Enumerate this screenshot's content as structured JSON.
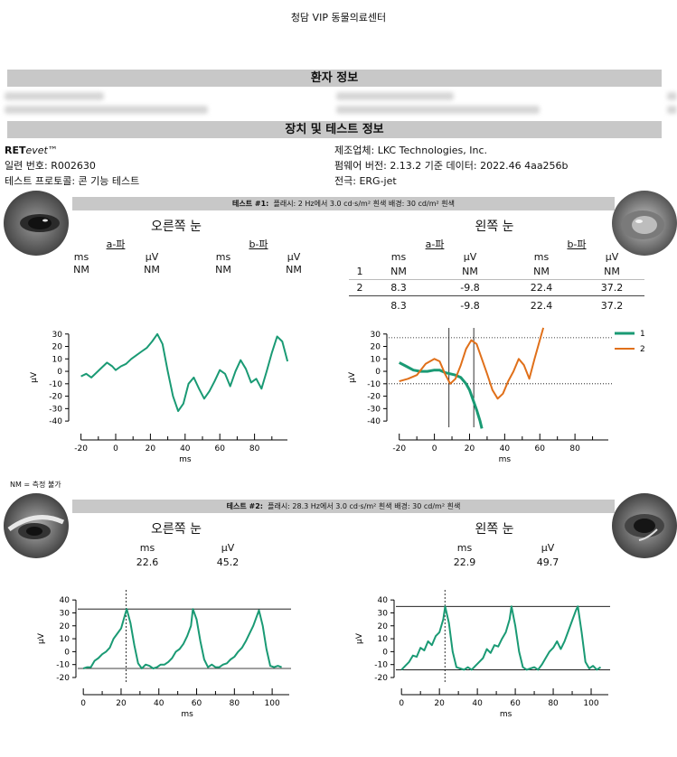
{
  "header": {
    "clinic": "청담 VIP 동물의료센터"
  },
  "sections": {
    "patient": "환자 정보",
    "device": "장치 및 테스트 정보"
  },
  "device": {
    "brand_bold": "RET",
    "brand_italic": "evet",
    "brand_tm": "™",
    "serial_label": "일련 번호:",
    "serial": "R002630",
    "protocol_label": "테스트 프로토콜:",
    "protocol": "콘 기능 테스트",
    "maker_label": "제조업체:",
    "maker": "LKC Technologies, Inc.",
    "firmware_label": "펌웨어 버전:",
    "firmware": "2.13.2 기준 데이터: 2022.46 4aa256b",
    "electrode_label": "전극:",
    "electrode": "ERG-jet"
  },
  "test1": {
    "bar_label": "테스트 #1:",
    "bar_text": "플래시: 2 Hz에서 3.0 cd·s/m² 흰색   배경: 30 cd/m² 흰색",
    "right_eye": "오른쪽 눈",
    "left_eye": "왼쪽 눈",
    "a_wave": "a-파",
    "b_wave": "b-파",
    "unit_ms": "ms",
    "unit_uv": "µV",
    "right_row": [
      "NM",
      "NM",
      "NM",
      "NM"
    ],
    "left_rows": [
      {
        "idx": "1",
        "vals": [
          "NM",
          "NM",
          "NM",
          "NM"
        ]
      },
      {
        "idx": "2",
        "vals": [
          "8.3",
          "-9.8",
          "22.4",
          "37.2"
        ]
      }
    ],
    "left_summary": [
      "8.3",
      "-9.8",
      "22.4",
      "37.2"
    ],
    "nm_note": "NM = 측정 불가"
  },
  "test2": {
    "bar_label": "테스트 #2:",
    "bar_text": "플래시: 28.3 Hz에서 3.0 cd·s/m² 흰색   배경: 30 cd/m² 흰색",
    "right_eye": "오른쪽 눈",
    "left_eye": "왼쪽 눈",
    "unit_ms": "ms",
    "unit_uv": "µV",
    "right_vals": [
      "22.6",
      "45.2"
    ],
    "left_vals": [
      "22.9",
      "49.7"
    ]
  },
  "chart_data": [
    {
      "type": "line",
      "id": "t1-right",
      "xlabel": "ms",
      "ylabel": "µV",
      "xlim": [
        -25,
        100
      ],
      "ylim": [
        -45,
        32
      ],
      "xticks": [
        -20,
        0,
        20,
        40,
        60,
        80
      ],
      "yticks": [
        30,
        20,
        10,
        0,
        -10,
        -20,
        -30,
        -40
      ],
      "series": [
        {
          "color": "#1a9a74",
          "x": [
            -20,
            -17,
            -14,
            -11,
            -8,
            -5,
            -2,
            0,
            3,
            6,
            9,
            12,
            15,
            18,
            21,
            24,
            27,
            30,
            33,
            36,
            39,
            42,
            45,
            48,
            51,
            54,
            57,
            60,
            63,
            66,
            69,
            72,
            75,
            78,
            81,
            84,
            87,
            90,
            93,
            96,
            99
          ],
          "y": [
            -4,
            -2,
            -5,
            -1,
            3,
            7,
            4,
            1,
            4,
            6,
            10,
            13,
            16,
            19,
            24,
            30,
            22,
            0,
            -20,
            -32,
            -26,
            -10,
            -5,
            -14,
            -22,
            -16,
            -8,
            1,
            -2,
            -12,
            0,
            9,
            2,
            -9,
            -6,
            -14,
            0,
            15,
            28,
            24,
            8
          ]
        }
      ]
    },
    {
      "type": "line",
      "id": "t1-left",
      "xlabel": "ms",
      "ylabel": "µV",
      "xlim": [
        -25,
        100
      ],
      "ylim": [
        -45,
        32
      ],
      "xticks": [
        -20,
        0,
        20,
        40,
        60,
        80
      ],
      "yticks": [
        30,
        20,
        10,
        0,
        -10,
        -20,
        -30,
        -40
      ],
      "markers": {
        "x": [
          8.3,
          22.4
        ],
        "y": [
          27,
          -10
        ]
      },
      "legend": [
        "1",
        "2"
      ],
      "series": [
        {
          "name": "1",
          "color": "#1a9a74",
          "x": [
            -20,
            -16,
            -12,
            -8,
            -4,
            0,
            3,
            6,
            9,
            12,
            15,
            18,
            20,
            22,
            24,
            26,
            27
          ],
          "y": [
            7,
            4,
            1,
            0,
            0,
            1,
            1,
            -1,
            -2,
            -3,
            -5,
            -10,
            -15,
            -23,
            -31,
            -40,
            -46
          ]
        },
        {
          "name": "2",
          "color": "#e0701a",
          "x": [
            -20,
            -15,
            -10,
            -5,
            0,
            3,
            6,
            9,
            12,
            15,
            18,
            21,
            24,
            27,
            30,
            33,
            36,
            39,
            42,
            45,
            48,
            51,
            54,
            57,
            60,
            62
          ],
          "y": [
            -8,
            -6,
            -3,
            6,
            10,
            8,
            -2,
            -10,
            -6,
            5,
            18,
            25,
            22,
            10,
            -2,
            -15,
            -22,
            -18,
            -8,
            0,
            10,
            5,
            -6,
            10,
            25,
            35
          ]
        }
      ]
    },
    {
      "type": "line",
      "id": "t2-right",
      "xlabel": "ms",
      "ylabel": "µV",
      "xlim": [
        -2,
        110
      ],
      "ylim": [
        -20,
        45
      ],
      "xticks": [
        0,
        20,
        40,
        60,
        80,
        100
      ],
      "yticks": [
        40,
        30,
        20,
        10,
        0,
        -10,
        -20
      ],
      "markers": {
        "x": [
          22.6
        ],
        "y": [
          33,
          -13
        ]
      },
      "series": [
        {
          "color": "#1a9a74",
          "x": [
            0,
            2,
            4,
            6,
            8,
            10,
            12,
            14,
            16,
            18,
            20,
            22,
            23,
            25,
            27,
            29,
            31,
            33,
            35,
            37,
            39,
            41,
            43,
            45,
            47,
            49,
            51,
            53,
            55,
            57,
            58,
            60,
            62,
            64,
            66,
            68,
            70,
            72,
            74,
            76,
            78,
            80,
            82,
            84,
            86,
            88,
            90,
            92,
            93,
            95,
            97,
            99,
            101,
            103,
            105
          ],
          "y": [
            -13,
            -12,
            -12,
            -7,
            -5,
            -2,
            0,
            3,
            10,
            14,
            18,
            28,
            33,
            22,
            5,
            -9,
            -13,
            -10,
            -11,
            -13,
            -12,
            -10,
            -10,
            -8,
            -5,
            0,
            2,
            6,
            12,
            20,
            33,
            25,
            8,
            -6,
            -12,
            -10,
            -12,
            -12,
            -10,
            -9,
            -6,
            -4,
            0,
            3,
            8,
            14,
            20,
            28,
            32,
            20,
            2,
            -11,
            -12,
            -11,
            -12
          ]
        }
      ]
    },
    {
      "type": "line",
      "id": "t2-left",
      "xlabel": "ms",
      "ylabel": "µV",
      "xlim": [
        -2,
        110
      ],
      "ylim": [
        -20,
        45
      ],
      "xticks": [
        0,
        20,
        40,
        60,
        80,
        100
      ],
      "yticks": [
        40,
        30,
        20,
        10,
        0,
        -10,
        -20
      ],
      "markers": {
        "x": [
          22.9
        ],
        "y": [
          35,
          -14
        ]
      },
      "series": [
        {
          "color": "#1a9a74",
          "x": [
            0,
            2,
            4,
            6,
            8,
            10,
            12,
            14,
            16,
            18,
            20,
            22,
            23,
            25,
            27,
            29,
            31,
            33,
            35,
            37,
            39,
            41,
            43,
            45,
            47,
            49,
            51,
            53,
            55,
            57,
            58,
            60,
            62,
            64,
            66,
            68,
            70,
            72,
            74,
            76,
            78,
            80,
            82,
            84,
            86,
            88,
            90,
            92,
            93,
            95,
            97,
            99,
            101,
            103,
            105
          ],
          "y": [
            -14,
            -11,
            -8,
            -3,
            -4,
            3,
            1,
            8,
            5,
            12,
            15,
            25,
            35,
            22,
            0,
            -12,
            -13,
            -14,
            -12,
            -14,
            -11,
            -8,
            -5,
            2,
            -1,
            5,
            4,
            10,
            15,
            25,
            35,
            20,
            0,
            -12,
            -14,
            -13,
            -12,
            -14,
            -10,
            -5,
            0,
            3,
            8,
            2,
            8,
            16,
            24,
            32,
            35,
            15,
            -8,
            -13,
            -11,
            -14,
            -12
          ]
        }
      ]
    }
  ]
}
